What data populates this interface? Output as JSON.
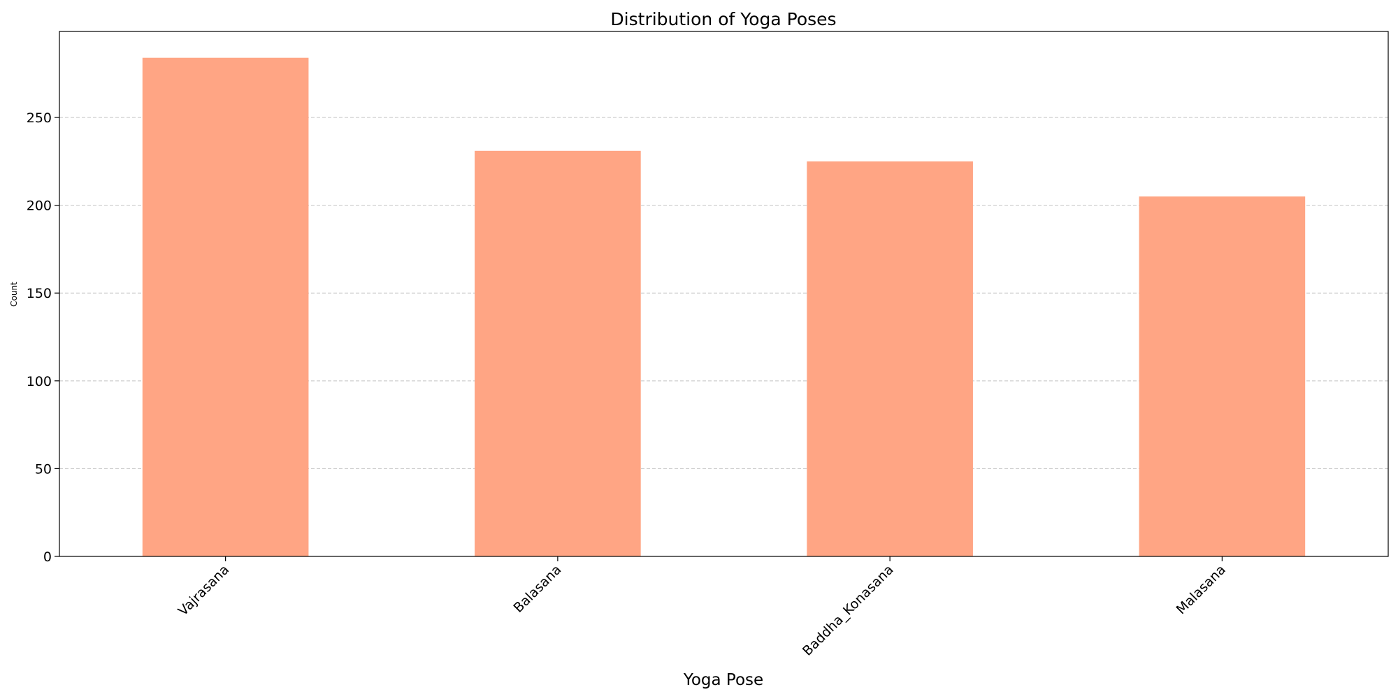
{
  "chart_data": {
    "type": "bar",
    "title": "Distribution of Yoga Poses",
    "xlabel": "Yoga Pose",
    "ylabel": "Count",
    "categories": [
      "Vajrasana",
      "Balasana",
      "Baddha_Konasana",
      "Malasana"
    ],
    "values": [
      284,
      231,
      225,
      205
    ],
    "ylim": [
      0,
      299
    ],
    "yticks": [
      0,
      50,
      100,
      150,
      200,
      250
    ],
    "grid": "y-dashed",
    "legend": "none",
    "bar_color": "#ffa584",
    "grid_color": "#c4c4c4"
  }
}
